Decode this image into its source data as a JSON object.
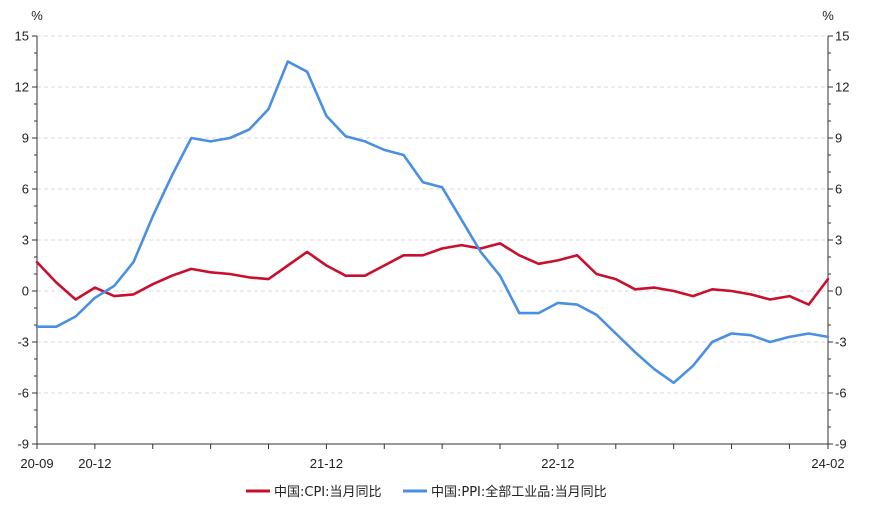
{
  "chart_data": {
    "type": "line",
    "units": {
      "left": "%",
      "right": "%"
    },
    "y_ticks": [
      15,
      12,
      9,
      6,
      3,
      0,
      -3,
      -6,
      -9
    ],
    "ylim": [
      -9,
      15
    ],
    "x_tick_labels": [
      "20-09",
      "20-12",
      "21-12",
      "22-12",
      "24-02"
    ],
    "x": [
      "2020-09",
      "2020-10",
      "2020-11",
      "2020-12",
      "2021-01",
      "2021-02",
      "2021-03",
      "2021-04",
      "2021-05",
      "2021-06",
      "2021-07",
      "2021-08",
      "2021-09",
      "2021-10",
      "2021-11",
      "2021-12",
      "2022-01",
      "2022-02",
      "2022-03",
      "2022-04",
      "2022-05",
      "2022-06",
      "2022-07",
      "2022-08",
      "2022-09",
      "2022-10",
      "2022-11",
      "2022-12",
      "2023-01",
      "2023-02",
      "2023-03",
      "2023-04",
      "2023-05",
      "2023-06",
      "2023-07",
      "2023-08",
      "2023-09",
      "2023-10",
      "2023-11",
      "2023-12",
      "2024-01",
      "2024-02"
    ],
    "grid": "horizontal-dashed",
    "legend_position": "bottom",
    "series": [
      {
        "name": "中国:CPI:当月同比",
        "color": "#c8102e",
        "values": [
          1.7,
          0.5,
          -0.5,
          0.2,
          -0.3,
          -0.2,
          0.4,
          0.9,
          1.3,
          1.1,
          1.0,
          0.8,
          0.7,
          1.5,
          2.3,
          1.5,
          0.9,
          0.9,
          1.5,
          2.1,
          2.1,
          2.5,
          2.7,
          2.5,
          2.8,
          2.1,
          1.6,
          1.8,
          2.1,
          1.0,
          0.7,
          0.1,
          0.2,
          0.0,
          -0.3,
          0.1,
          0.0,
          -0.2,
          -0.5,
          -0.3,
          -0.8,
          0.7
        ]
      },
      {
        "name": "中国:PPI:全部工业品:当月同比",
        "color": "#4a90e2",
        "values": [
          -2.1,
          -2.1,
          -1.5,
          -0.4,
          0.3,
          1.7,
          4.4,
          6.8,
          9.0,
          8.8,
          9.0,
          9.5,
          10.7,
          13.5,
          12.9,
          10.3,
          9.1,
          8.8,
          8.3,
          8.0,
          6.4,
          6.1,
          4.2,
          2.3,
          0.9,
          -1.3,
          -1.3,
          -0.7,
          -0.8,
          -1.4,
          -2.5,
          -3.6,
          -4.6,
          -5.4,
          -4.4,
          -3.0,
          -2.5,
          -2.6,
          -3.0,
          -2.7,
          -2.5,
          -2.7
        ]
      }
    ]
  }
}
